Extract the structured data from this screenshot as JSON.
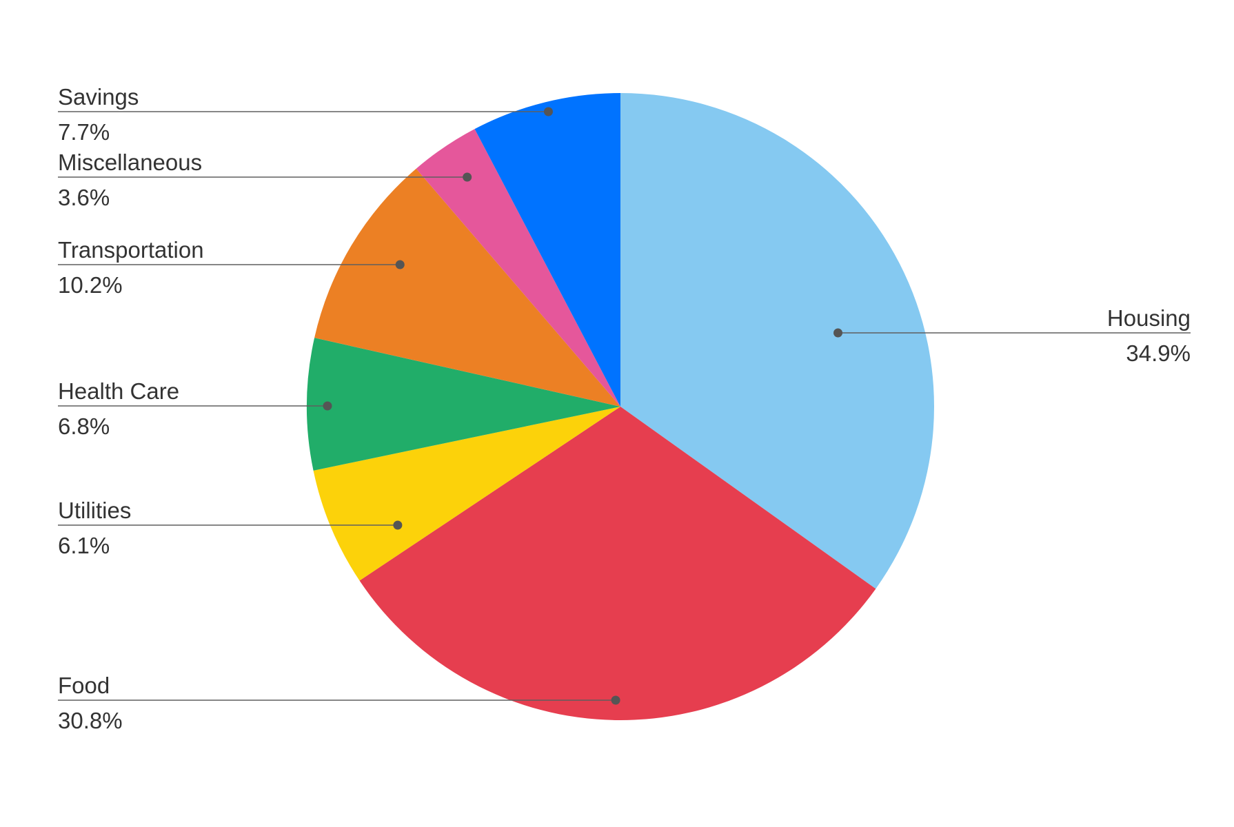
{
  "chart_data": {
    "type": "pie",
    "title": "",
    "slices": [
      {
        "label": "Housing",
        "percent_label": "34.9%",
        "value": 34.9,
        "color": "#85C9F1"
      },
      {
        "label": "Food",
        "percent_label": "30.8%",
        "value": 30.8,
        "color": "#E63E4F"
      },
      {
        "label": "Utilities",
        "percent_label": "6.1%",
        "value": 6.1,
        "color": "#FCD20A"
      },
      {
        "label": "Health Care",
        "percent_label": "6.8%",
        "value": 6.8,
        "color": "#21AD69"
      },
      {
        "label": "Transportation",
        "percent_label": "10.2%",
        "value": 10.2,
        "color": "#EC8024"
      },
      {
        "label": "Miscellaneous",
        "percent_label": "3.6%",
        "value": 3.6,
        "color": "#E5579B"
      },
      {
        "label": "Savings",
        "percent_label": "7.7%",
        "value": 7.7,
        "color": "#0073FF"
      }
    ],
    "start_angle": "12 o'clock",
    "direction": "clockwise",
    "legend": "none (callout labels)"
  }
}
